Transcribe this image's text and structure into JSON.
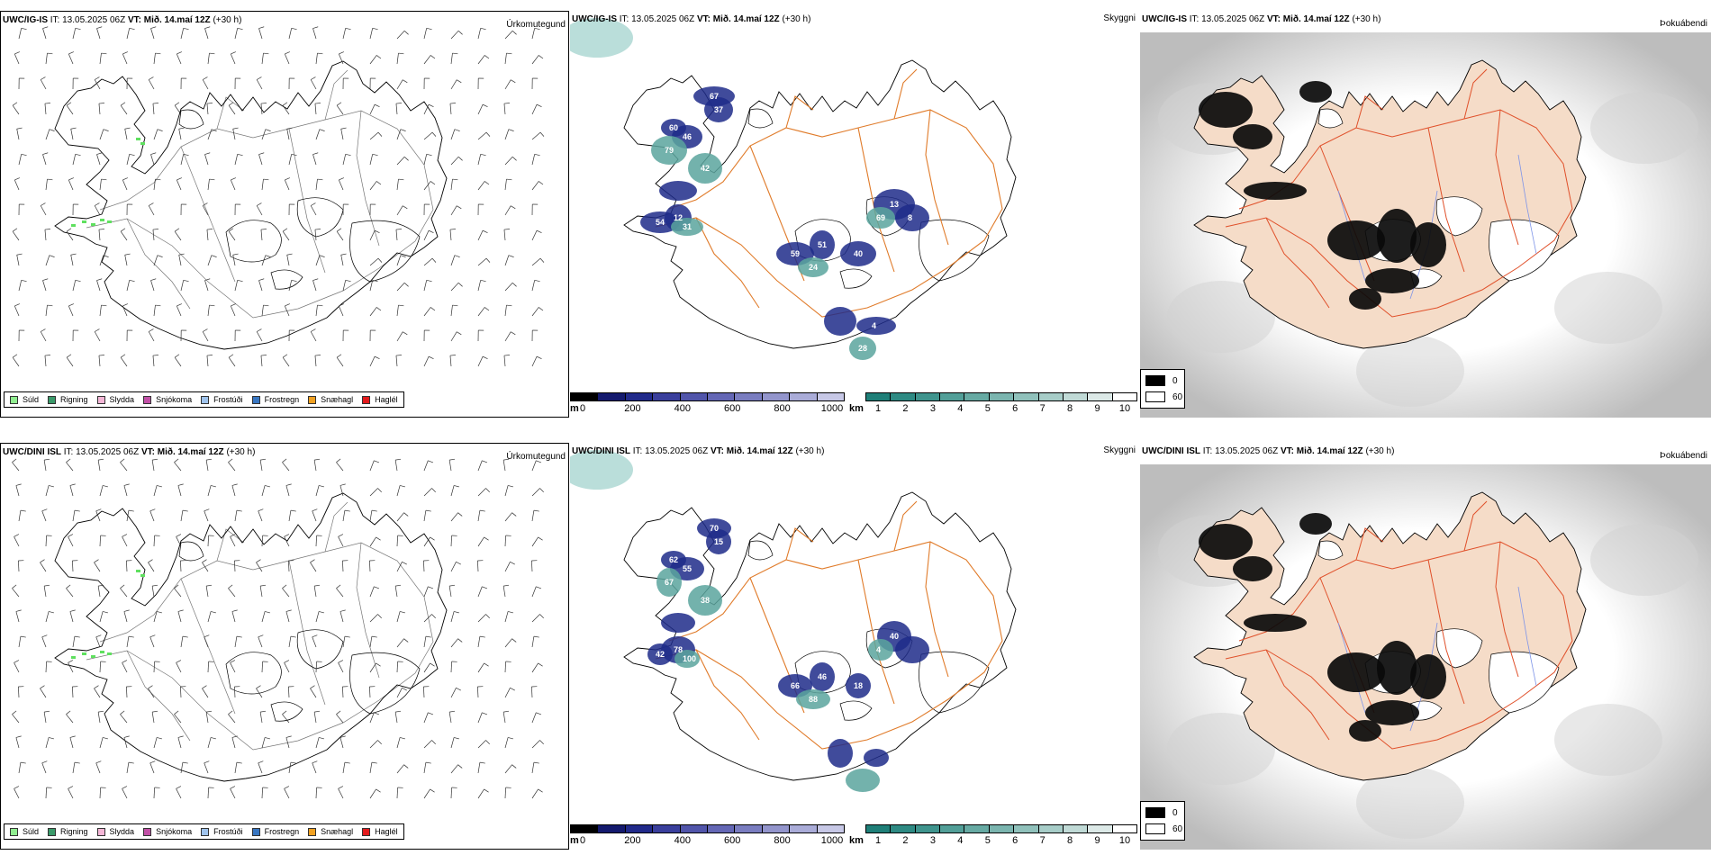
{
  "rows": [
    {
      "precip": {
        "model": "UWC/IG-IS",
        "it": "IT: 13.05.2025 06Z",
        "vt": "VT: Mið. 14.maí 12Z",
        "lead": "(+30 h)",
        "product": "Úrkomutegund"
      },
      "cloud": {
        "model": "UWC/IG-IS",
        "it": "IT: 13.05.2025 06Z",
        "vt": "VT: Mið. 14.maí 12Z",
        "lead": "(+30 h)",
        "product": "Skyggni",
        "labels": [
          "60",
          "46",
          "79",
          "67",
          "37",
          "42",
          "54",
          "12",
          "31",
          "59",
          "51",
          "24",
          "40",
          "13",
          "69",
          "8",
          "4",
          "28"
        ]
      },
      "fog": {
        "model": "UWC/IG-IS",
        "it": "IT: 13.05.2025 06Z",
        "vt": "VT: Mið. 14.maí 12Z",
        "lead": "(+30 h)",
        "product": "Þokuábendi"
      }
    },
    {
      "precip": {
        "model": "UWC/DINI ISL",
        "it": "IT: 13.05.2025 06Z",
        "vt": "VT: Mið. 14.maí 12Z",
        "lead": "(+30 h)",
        "product": "Úrkomutegund"
      },
      "cloud": {
        "model": "UWC/DINI ISL",
        "it": "IT: 13.05.2025 06Z",
        "vt": "VT: Mið. 14.maí 12Z",
        "lead": "(+30 h)",
        "product": "Skyggni",
        "labels": [
          "62",
          "55",
          "67",
          "70",
          "15",
          "38",
          "42",
          "78",
          "100",
          "66",
          "46",
          "88",
          "18",
          "40",
          "4"
        ]
      },
      "fog": {
        "model": "UWC/DINI ISL",
        "it": "IT: 13.05.2025 06Z",
        "vt": "VT: Mið. 14.maí 12Z",
        "lead": "(+30 h)",
        "product": "Þokuábendi"
      }
    }
  ],
  "precip_legend": [
    {
      "label": "Súld",
      "color": "#90ee90"
    },
    {
      "label": "Rigning",
      "color": "#3a9a6a"
    },
    {
      "label": "Slydda",
      "color": "#f4b6d6"
    },
    {
      "label": "Snjókoma",
      "color": "#c14fa6"
    },
    {
      "label": "Frostúði",
      "color": "#9fc3ec"
    },
    {
      "label": "Frostregn",
      "color": "#3876c2"
    },
    {
      "label": "Snæhagl",
      "color": "#f0a020"
    },
    {
      "label": "Haglél",
      "color": "#e31a1c"
    }
  ],
  "height_bar": {
    "unit": "m",
    "ticks": [
      "0",
      "200",
      "400",
      "600",
      "800",
      "1000"
    ],
    "colors": [
      "#000000",
      "#141a6e",
      "#212a8a",
      "#3a3f9c",
      "#5155aa",
      "#6467b5",
      "#7a7dc0",
      "#9395cc",
      "#aaacd8",
      "#c7c8e6"
    ]
  },
  "vis_bar": {
    "unit": "km",
    "ticks": [
      "1",
      "2",
      "3",
      "4",
      "5",
      "6",
      "7",
      "8",
      "9",
      "10"
    ],
    "colors": [
      "#1f7f78",
      "#2e8a83",
      "#3f948d",
      "#529f98",
      "#67aaa3",
      "#7bb5af",
      "#90c1bb",
      "#a7cdc8",
      "#c0dad6",
      "#dce9e7",
      "#ffffff"
    ]
  },
  "fog_legend": [
    {
      "label": "0",
      "color": "#000000"
    },
    {
      "label": "60",
      "color": "#ffffff"
    }
  ]
}
